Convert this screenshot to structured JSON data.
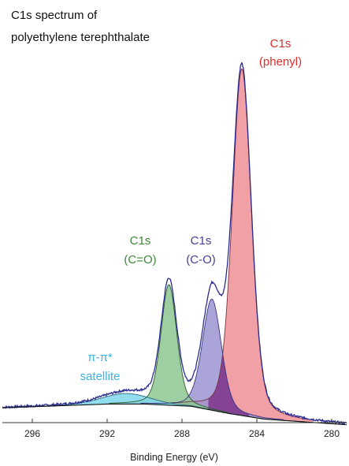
{
  "chart_data": {
    "type": "area",
    "title_lines": [
      "C1s spectrum of",
      "polyethylene terephthalate"
    ],
    "xlabel": "Binding Energy (eV)",
    "ylabel": "",
    "x_reversed": true,
    "xlim": [
      297.6,
      279.2
    ],
    "ylim": [
      0,
      100
    ],
    "x_ticks": [
      296,
      292,
      288,
      284,
      280
    ],
    "x_tick_labels": [
      "296",
      "292",
      "288",
      "284",
      "280"
    ],
    "grid": false,
    "background": [
      {
        "x": 297.6,
        "y": 1.0
      },
      {
        "x": 292.0,
        "y": 2.0
      },
      {
        "x": 290.0,
        "y": 2.0
      },
      {
        "x": 287.5,
        "y": 1.4
      },
      {
        "x": 285.5,
        "y": -0.5
      },
      {
        "x": 283.6,
        "y": -2.0
      },
      {
        "x": 279.2,
        "y": -3.5
      }
    ],
    "peaks": [
      {
        "name": "phenyl",
        "center": 284.8,
        "height": 92.0,
        "fwhm": 1.2,
        "color": "#ef8f96",
        "stroke": "#7b3040"
      },
      {
        "name": "C-O",
        "center": 286.4,
        "height": 29.5,
        "fwhm": 1.2,
        "color": "#9c94d2",
        "stroke": "#3c3582"
      },
      {
        "name": "C=O",
        "center": 288.7,
        "height": 32.0,
        "fwhm": 1.0,
        "color": "#8dc792",
        "stroke": "#2c5a2e"
      },
      {
        "name": "pi-pi* satellite",
        "center": 291.0,
        "height": 2.8,
        "fwhm": 3.0,
        "color": "#7fd6ec",
        "stroke": "#2b6a7c"
      }
    ],
    "overlap_color": "#7a2e86",
    "envelope_color": "#2a2b92",
    "annotations": [
      {
        "lines": [
          "C1s",
          "(phenyl)"
        ],
        "color": "#e02d2d"
      },
      {
        "lines": [
          "C1s",
          "(C-O)"
        ],
        "color": "#4a3e96"
      },
      {
        "lines": [
          "C1s",
          "(C=O)"
        ],
        "color": "#3c8a38"
      },
      {
        "lines": [
          "π-π*",
          "satellite"
        ],
        "color": "#3ab4e2"
      }
    ]
  }
}
